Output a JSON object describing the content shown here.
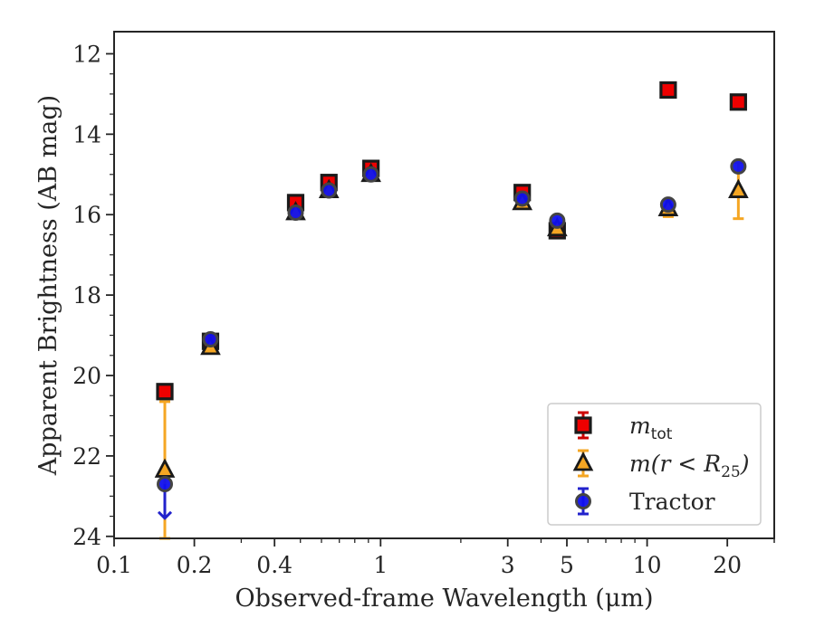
{
  "chart_data": {
    "type": "scatter",
    "title": "",
    "xlabel": "Observed-frame Wavelength (μm)",
    "ylabel": "Apparent Brightness (AB mag)",
    "xscale": "log",
    "yaxis_inverted": true,
    "xlim": [
      0.1,
      30
    ],
    "ylim": [
      24.05,
      11.45
    ],
    "xticks": [
      0.1,
      0.2,
      0.4,
      1,
      3,
      5,
      10,
      20
    ],
    "xtick_labels": [
      "0.1",
      "0.2",
      "0.4",
      "1",
      "3",
      "5",
      "10",
      "20"
    ],
    "yticks": [
      12,
      14,
      16,
      18,
      20,
      22,
      24
    ],
    "ytick_labels": [
      "12",
      "14",
      "16",
      "18",
      "20",
      "22",
      "24"
    ],
    "grid": false,
    "legend_position": "bottom-right",
    "legend": [
      {
        "name": "m_tot",
        "base": "m",
        "sub": "tot",
        "rest": "",
        "marker": "square"
      },
      {
        "name": "m(r < R25)",
        "base": "m",
        "sub": "25",
        "rest": "(r < R",
        "marker": "triangle"
      },
      {
        "name": "Tractor",
        "base": "Tractor",
        "sub": "",
        "rest": "",
        "marker": "circle"
      }
    ],
    "series": [
      {
        "name": "m_tot",
        "marker": "square",
        "color": "#ee0000",
        "edge_color": "#1a1a1a",
        "errbar_color": "#cc0000",
        "x": [
          0.155,
          0.23,
          0.48,
          0.64,
          0.92,
          3.4,
          4.6,
          12.0,
          22.0
        ],
        "y": [
          20.4,
          19.15,
          15.7,
          15.2,
          14.85,
          15.45,
          16.4,
          12.9,
          13.2
        ],
        "yerr": [
          0,
          0,
          0,
          0,
          0,
          0,
          0,
          0,
          0
        ]
      },
      {
        "name": "m(r < R25)",
        "marker": "triangle",
        "color": "#f5a623",
        "edge_color": "#1a1a1a",
        "errbar_color": "#f5a623",
        "x": [
          0.155,
          0.23,
          0.48,
          0.64,
          0.92,
          3.4,
          4.6,
          12.0,
          22.0
        ],
        "y": [
          22.35,
          19.3,
          15.95,
          15.4,
          15.0,
          15.7,
          16.35,
          15.85,
          15.4
        ],
        "yerr": [
          1.7,
          0,
          0,
          0,
          0,
          0,
          0,
          0.2,
          0.7
        ]
      },
      {
        "name": "Tractor",
        "marker": "circle",
        "color": "#1010ee",
        "edge_color": "#444444",
        "errbar_color": "#2222cc",
        "x": [
          0.155,
          0.23,
          0.48,
          0.64,
          0.92,
          3.4,
          4.6,
          12.0,
          22.0
        ],
        "y": [
          22.7,
          19.1,
          15.95,
          15.4,
          15.0,
          15.6,
          16.15,
          15.75,
          14.8
        ],
        "yerr": [
          0,
          0,
          0,
          0,
          0,
          0,
          0,
          0,
          0
        ],
        "upper_limit": [
          true,
          false,
          false,
          false,
          false,
          false,
          false,
          false,
          false
        ],
        "upper_limit_to": [
          23.55,
          null,
          null,
          null,
          null,
          null,
          null,
          null,
          null
        ]
      }
    ]
  }
}
